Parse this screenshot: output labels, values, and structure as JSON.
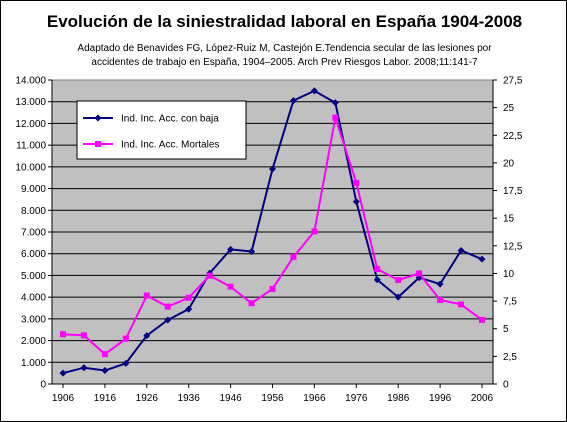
{
  "title": "Evolución de la siniestralidad laboral en España 1904-2008",
  "subtitle_lines": [
    "Adaptado de  Benavides FG, López-Ruiz M, Castejón E.Tendencia secular de las lesiones por",
    "accidentes de trabajo en España, 1904–2005. Arch Prev Riesgos Labor. 2008;11:141-7"
  ],
  "chart_data": {
    "type": "line",
    "background_color": "#c0c0c0",
    "grid": true,
    "legend_placement": "top-left",
    "x": [
      1906,
      1911,
      1916,
      1921,
      1926,
      1931,
      1936,
      1941,
      1946,
      1951,
      1956,
      1961,
      1966,
      1971,
      1976,
      1981,
      1986,
      1991,
      1996,
      2001,
      2006
    ],
    "x_tick_labels": [
      "1906",
      "1916",
      "1926",
      "1936",
      "1946",
      "1956",
      "1966",
      "1976",
      "1986",
      "1996",
      "2006"
    ],
    "y_left": {
      "ylim": [
        0,
        14000
      ],
      "tick_labels": [
        "0",
        "1.000",
        "2.000",
        "3.000",
        "4.000",
        "5.000",
        "6.000",
        "7.000",
        "8.000",
        "9.000",
        "10.000",
        "11.000",
        "12.000",
        "13.000",
        "14.000"
      ]
    },
    "y_right": {
      "ylim": [
        0,
        27.5
      ],
      "tick_labels": [
        "0",
        "2,5",
        "5",
        "7,5",
        "10",
        "12,5",
        "15",
        "17,5",
        "20",
        "22,5",
        "25",
        "27,5"
      ]
    },
    "series": [
      {
        "name": "Ind. Inc. Acc. con baja",
        "axis": "left",
        "color": "#000080",
        "marker": "diamond",
        "values": [
          500,
          750,
          620,
          950,
          2230,
          2950,
          3450,
          5100,
          6200,
          6100,
          9900,
          13050,
          13500,
          12950,
          8400,
          4800,
          4000,
          4900,
          4600,
          6150,
          5750
        ]
      },
      {
        "name": "Ind. Inc. Acc. Mortales",
        "axis": "right",
        "color": "#ff00ff",
        "marker": "square",
        "values": [
          4.5,
          4.4,
          2.7,
          4.1,
          8.0,
          7.0,
          7.8,
          9.8,
          8.8,
          7.3,
          8.6,
          11.5,
          13.8,
          24.1,
          18.2,
          10.4,
          9.4,
          10.0,
          7.6,
          7.2,
          5.8
        ]
      }
    ]
  }
}
